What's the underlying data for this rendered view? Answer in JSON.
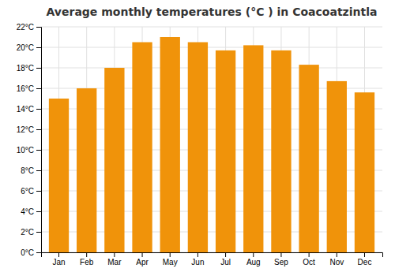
{
  "chart_data": {
    "type": "bar",
    "title": "Average monthly temperatures (°C ) in Coacoatzintla",
    "categories": [
      "Jan",
      "Feb",
      "Mar",
      "Apr",
      "May",
      "Jun",
      "Jul",
      "Aug",
      "Sep",
      "Oct",
      "Nov",
      "Dec"
    ],
    "values": [
      15.0,
      16.0,
      18.0,
      20.5,
      21.0,
      20.5,
      19.7,
      20.2,
      19.7,
      18.3,
      16.7,
      15.6
    ],
    "color": "#F0930A",
    "ylim": [
      0,
      22
    ],
    "yticks": [
      {
        "value": 0,
        "label": "0°C"
      },
      {
        "value": 2,
        "label": "2°C"
      },
      {
        "value": 4,
        "label": "4°C"
      },
      {
        "value": 6,
        "label": "6°C"
      },
      {
        "value": 8,
        "label": "8°C"
      },
      {
        "value": 10,
        "label": "10°C"
      },
      {
        "value": 12,
        "label": "12°C"
      },
      {
        "value": 14,
        "label": "14°C"
      },
      {
        "value": 16,
        "label": "16°C"
      },
      {
        "value": 18,
        "label": "18°C"
      },
      {
        "value": 20,
        "label": "20°C"
      },
      {
        "value": 22,
        "label": "22°C"
      }
    ],
    "grid": true
  }
}
